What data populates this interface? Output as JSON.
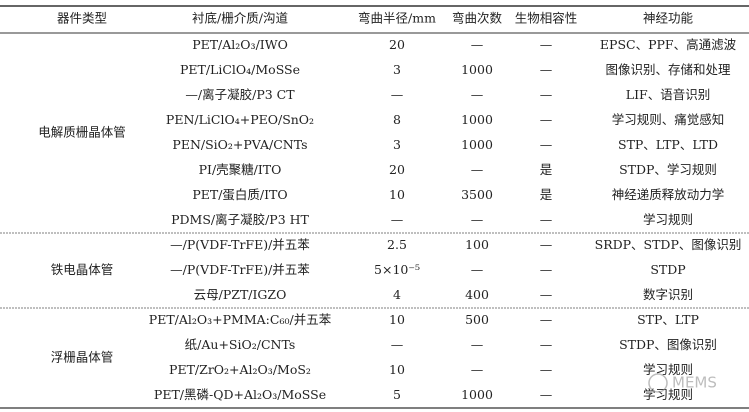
{
  "table": {
    "header": [
      "器件类型",
      "衬底/栅介质/沟道",
      "弯曲半径/mm",
      "弯曲次数",
      "生物相容性",
      "神经功能"
    ],
    "groups": [
      {
        "type": "电解质栅晶体管",
        "rows": [
          [
            "PET/Al₂O₃/IWO",
            "20",
            "—",
            "—",
            "EPSC、PPF、高通滤波"
          ],
          [
            "PET/LiClO₄/MoSSe",
            "3",
            "1000",
            "—",
            "图像识别、存储和处理"
          ],
          [
            "—/离子凝胶/P3 CT",
            "—",
            "—",
            "—",
            "LIF、语音识别"
          ],
          [
            "PEN/LiClO₄+PEO/SnO₂",
            "8",
            "1000",
            "—",
            "学习规则、痛觉感知"
          ],
          [
            "PEN/SiO₂+PVA/CNTs",
            "3",
            "1000",
            "—",
            "STP、LTP、LTD"
          ],
          [
            "PI/壳聚糖/ITO",
            "20",
            "—",
            "是",
            "STDP、学习规则"
          ],
          [
            "PET/蛋白质/ITO",
            "10",
            "3500",
            "是",
            "神经递质释放动力学"
          ],
          [
            "PDMS/离子凝胶/P3 HT",
            "—",
            "—",
            "—",
            "学习规则"
          ]
        ]
      },
      {
        "type": "铁电晶体管",
        "rows": [
          [
            "—/P(VDF-TrFE)/并五苯",
            "2.5",
            "100",
            "—",
            "SRDP、STDP、图像识别"
          ],
          [
            "—/P(VDF-TrFE)/并五苯",
            "5×10⁻⁵",
            "—",
            "—",
            "STDP"
          ],
          [
            "云母/PZT/IGZO",
            "4",
            "400",
            "—",
            "数字识别"
          ]
        ]
      },
      {
        "type": "浮栅晶体管",
        "rows": [
          [
            "PET/Al₂O₃+PMMA:C₆₀/并五苯",
            "10",
            "500",
            "—",
            "STP、LTP"
          ],
          [
            "纸/Au+SiO₂/CNTs",
            "—",
            "—",
            "—",
            "STDP、图像识别"
          ],
          [
            "PET/ZrO₂+Al₂O₃/MoS₂",
            "10",
            "—",
            "—",
            "学习规则"
          ],
          [
            "PET/黑磷-QD+Al₂O₃/MoSSe",
            "5",
            "1000",
            "—",
            "学习规则"
          ]
        ]
      }
    ]
  },
  "watermark": "MEMS"
}
